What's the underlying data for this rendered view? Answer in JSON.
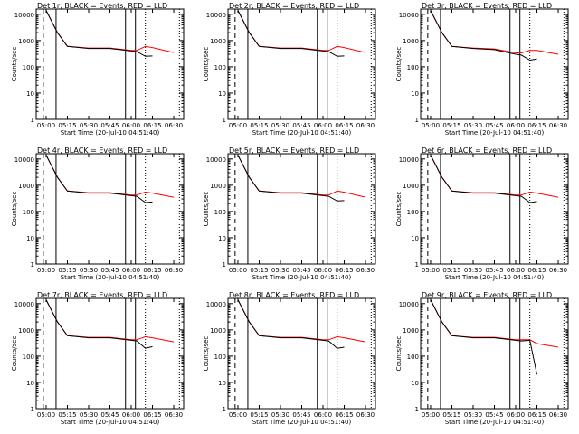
{
  "figure": {
    "xlabel": "Start Time (20-Jul-10 04:51:40)",
    "ylabel": "Counts/sec",
    "legend_text": "BLACK = Events, RED = LLD",
    "colors": {
      "events": "#000000",
      "lld": "#ff0000",
      "axes": "#000000"
    }
  },
  "chart_data": [
    {
      "type": "line",
      "title": "Det 1r",
      "xlabel": "Start Time (20-Jul-10 04:51:40)",
      "ylabel": "Counts/sec",
      "x_ticks": [
        "05:00",
        "05:15",
        "05:30",
        "05:45",
        "06:00",
        "06:15",
        "06:30"
      ],
      "y_ticks": [
        "1",
        "10",
        "100",
        "1000",
        "10000"
      ],
      "yscale": "log",
      "x_minutes": [
        0,
        8,
        15,
        30,
        45,
        60,
        64,
        70,
        75,
        90
      ],
      "series": [
        {
          "name": "Events",
          "color": "#000000",
          "values": [
            14000,
            2000,
            600,
            500,
            500,
            400,
            380,
            250,
            260,
            null
          ]
        },
        {
          "name": "LLD",
          "color": "#ff0000",
          "values": [
            14000,
            2000,
            600,
            520,
            520,
            420,
            420,
            600,
            540,
            350
          ]
        }
      ]
    },
    {
      "type": "line",
      "title": "Det 2r",
      "xlabel": "Start Time (20-Jul-10 04:51:40)",
      "ylabel": "Counts/sec",
      "x_ticks": [
        "05:00",
        "05:15",
        "05:30",
        "05:45",
        "06:00",
        "06:15",
        "06:30"
      ],
      "y_ticks": [
        "1",
        "10",
        "100",
        "1000",
        "10000"
      ],
      "yscale": "log",
      "x_minutes": [
        0,
        8,
        15,
        30,
        45,
        60,
        64,
        70,
        75,
        90
      ],
      "series": [
        {
          "name": "Events",
          "color": "#000000",
          "values": [
            14000,
            2000,
            600,
            500,
            500,
            400,
            380,
            250,
            260,
            null
          ]
        },
        {
          "name": "LLD",
          "color": "#ff0000",
          "values": [
            14000,
            2000,
            600,
            520,
            520,
            420,
            420,
            600,
            540,
            350
          ]
        }
      ]
    },
    {
      "type": "line",
      "title": "Det 3r",
      "xlabel": "Start Time (20-Jul-10 04:51:40)",
      "ylabel": "Counts/sec",
      "x_ticks": [
        "05:00",
        "05:15",
        "05:30",
        "05:45",
        "06:00",
        "06:15",
        "06:30"
      ],
      "y_ticks": [
        "1",
        "10",
        "100",
        "1000",
        "10000"
      ],
      "yscale": "log",
      "x_minutes": [
        0,
        8,
        15,
        30,
        45,
        60,
        64,
        70,
        75,
        90
      ],
      "series": [
        {
          "name": "Events",
          "color": "#000000",
          "values": [
            14000,
            2000,
            600,
            500,
            450,
            300,
            280,
            180,
            200,
            null
          ]
        },
        {
          "name": "LLD",
          "color": "#ff0000",
          "values": [
            14000,
            2000,
            600,
            520,
            480,
            340,
            340,
            420,
            420,
            300
          ]
        }
      ]
    },
    {
      "type": "line",
      "title": "Det 4r",
      "xlabel": "Start Time (20-Jul-10 04:51:40)",
      "ylabel": "Counts/sec",
      "x_ticks": [
        "05:00",
        "05:15",
        "05:30",
        "05:45",
        "06:00",
        "06:15",
        "06:30"
      ],
      "y_ticks": [
        "1",
        "10",
        "100",
        "1000",
        "10000"
      ],
      "yscale": "log",
      "x_minutes": [
        0,
        8,
        15,
        30,
        45,
        60,
        64,
        70,
        75,
        90
      ],
      "series": [
        {
          "name": "Events",
          "color": "#000000",
          "values": [
            14000,
            2000,
            600,
            500,
            500,
            400,
            380,
            220,
            230,
            null
          ]
        },
        {
          "name": "LLD",
          "color": "#ff0000",
          "values": [
            14000,
            2000,
            600,
            520,
            520,
            420,
            420,
            550,
            500,
            350
          ]
        }
      ]
    },
    {
      "type": "line",
      "title": "Det 5r",
      "xlabel": "Start Time (20-Jul-10 04:51:40)",
      "ylabel": "Counts/sec",
      "x_ticks": [
        "05:00",
        "05:15",
        "05:30",
        "05:45",
        "06:00",
        "06:15",
        "06:30"
      ],
      "y_ticks": [
        "1",
        "10",
        "100",
        "1000",
        "10000"
      ],
      "yscale": "log",
      "x_minutes": [
        0,
        8,
        15,
        30,
        45,
        60,
        64,
        70,
        75,
        90
      ],
      "series": [
        {
          "name": "Events",
          "color": "#000000",
          "values": [
            14000,
            2000,
            600,
            500,
            500,
            400,
            380,
            250,
            260,
            null
          ]
        },
        {
          "name": "LLD",
          "color": "#ff0000",
          "values": [
            14000,
            2000,
            600,
            520,
            520,
            420,
            420,
            600,
            540,
            350
          ]
        }
      ]
    },
    {
      "type": "line",
      "title": "Det 6r",
      "xlabel": "Start Time (20-Jul-10 04:51:40)",
      "ylabel": "Counts/sec",
      "x_ticks": [
        "05:00",
        "05:15",
        "05:30",
        "05:45",
        "06:00",
        "06:15",
        "06:30"
      ],
      "y_ticks": [
        "1",
        "10",
        "100",
        "1000",
        "10000"
      ],
      "yscale": "log",
      "x_minutes": [
        0,
        8,
        15,
        30,
        45,
        60,
        64,
        70,
        75,
        90
      ],
      "series": [
        {
          "name": "Events",
          "color": "#000000",
          "values": [
            14000,
            2000,
            600,
            500,
            500,
            400,
            380,
            220,
            240,
            null
          ]
        },
        {
          "name": "LLD",
          "color": "#ff0000",
          "values": [
            14000,
            2000,
            600,
            520,
            520,
            420,
            420,
            550,
            500,
            350
          ]
        }
      ]
    },
    {
      "type": "line",
      "title": "Det 7r",
      "xlabel": "Start Time (20-Jul-10 04:51:40)",
      "ylabel": "Counts/sec",
      "x_ticks": [
        "05:00",
        "05:15",
        "05:30",
        "05:45",
        "06:00",
        "06:15",
        "06:30"
      ],
      "y_ticks": [
        "1",
        "10",
        "100",
        "1000",
        "10000"
      ],
      "yscale": "log",
      "x_minutes": [
        0,
        8,
        15,
        30,
        45,
        60,
        64,
        70,
        75,
        90
      ],
      "series": [
        {
          "name": "Events",
          "color": "#000000",
          "values": [
            14000,
            2000,
            600,
            500,
            500,
            400,
            380,
            200,
            230,
            null
          ]
        },
        {
          "name": "LLD",
          "color": "#ff0000",
          "values": [
            14000,
            2000,
            600,
            520,
            520,
            420,
            420,
            550,
            500,
            350
          ]
        }
      ]
    },
    {
      "type": "line",
      "title": "Det 8r",
      "xlabel": "Start Time (20-Jul-10 04:51:40)",
      "ylabel": "Counts/sec",
      "x_ticks": [
        "05:00",
        "05:15",
        "05:30",
        "05:45",
        "06:00",
        "06:15",
        "06:30"
      ],
      "y_ticks": [
        "1",
        "10",
        "100",
        "1000",
        "10000"
      ],
      "yscale": "log",
      "x_minutes": [
        0,
        8,
        15,
        30,
        45,
        60,
        64,
        70,
        75,
        90
      ],
      "series": [
        {
          "name": "Events",
          "color": "#000000",
          "values": [
            14000,
            2000,
            600,
            500,
            500,
            400,
            380,
            200,
            220,
            null
          ]
        },
        {
          "name": "LLD",
          "color": "#ff0000",
          "values": [
            14000,
            2000,
            600,
            520,
            520,
            420,
            420,
            550,
            500,
            350
          ]
        }
      ]
    },
    {
      "type": "line",
      "title": "Det 9r",
      "xlabel": "Start Time (20-Jul-10 04:51:40)",
      "ylabel": "Counts/sec",
      "x_ticks": [
        "05:00",
        "05:15",
        "05:30",
        "05:45",
        "06:00",
        "06:15",
        "06:30"
      ],
      "y_ticks": [
        "1",
        "10",
        "100",
        "1000",
        "10000"
      ],
      "yscale": "log",
      "x_minutes": [
        0,
        8,
        15,
        30,
        45,
        60,
        64,
        70,
        75,
        90
      ],
      "series": [
        {
          "name": "Events",
          "color": "#000000",
          "values": [
            14000,
            2000,
            600,
            500,
            500,
            400,
            380,
            400,
            20,
            null
          ]
        },
        {
          "name": "LLD",
          "color": "#ff0000",
          "values": [
            14000,
            2000,
            600,
            520,
            520,
            420,
            420,
            420,
            300,
            220
          ]
        }
      ]
    }
  ]
}
